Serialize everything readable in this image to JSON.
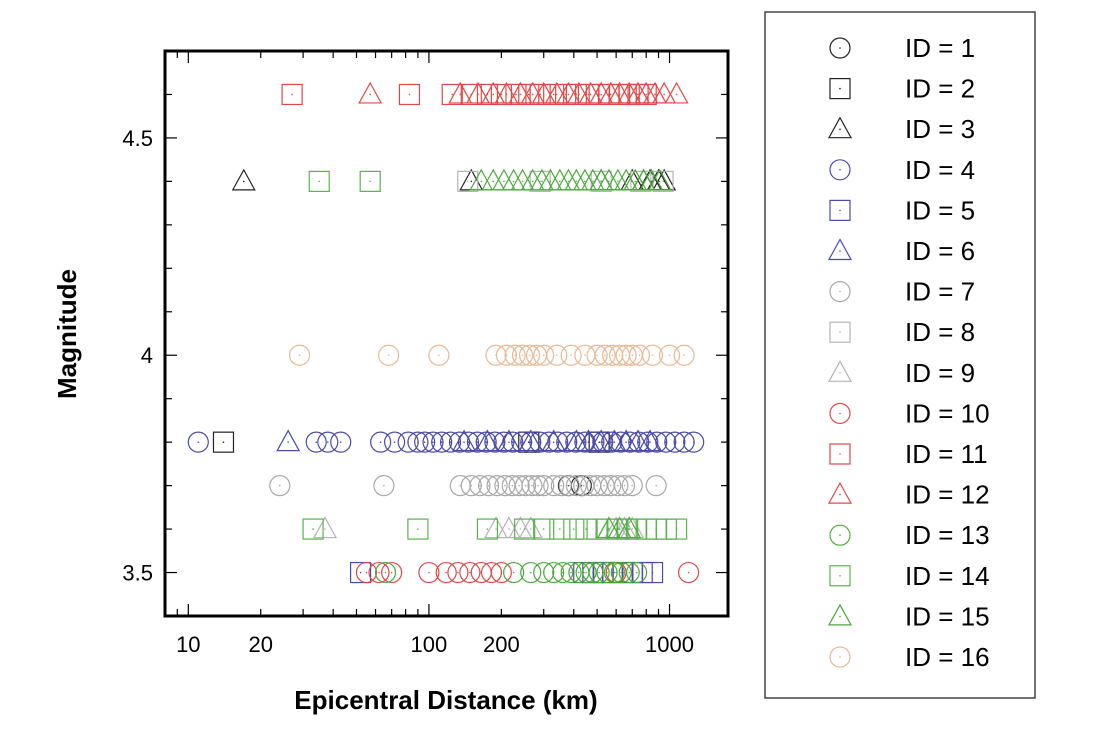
{
  "chart_data": {
    "type": "scatter",
    "xscale": "log",
    "xlabel": "Epicentral Distance (km)",
    "ylabel": "Magnitude",
    "xlim": [
      8,
      1750
    ],
    "ylim": [
      3.4,
      4.7
    ],
    "xticks": [
      10,
      20,
      100,
      200,
      1000
    ],
    "xtick_labels": [
      "10",
      "20",
      "100",
      "200",
      "1000"
    ],
    "yticks": [
      3.5,
      4,
      4.5
    ],
    "ytick_labels": [
      "3.5",
      "4",
      "4.5"
    ],
    "grid": false,
    "legend_position": "right",
    "series": [
      {
        "name": "ID = 1",
        "marker": "circle",
        "color": "#222222",
        "x": [
          380,
          430
        ],
        "y": [
          3.7,
          3.7
        ]
      },
      {
        "name": "ID = 2",
        "marker": "square",
        "color": "#222222",
        "x": [
          14,
          260,
          510
        ],
        "y": [
          3.8,
          3.8,
          3.8
        ]
      },
      {
        "name": "ID = 3",
        "marker": "triangle",
        "color": "#222222",
        "x": [
          17,
          150,
          520,
          700,
          780,
          830,
          900,
          950
        ],
        "y": [
          4.4,
          4.4,
          4.4,
          4.4,
          4.4,
          4.4,
          4.4,
          4.4
        ]
      },
      {
        "name": "ID = 4",
        "marker": "circle",
        "color": "#4a4aaa",
        "x": [
          11,
          34,
          38,
          43,
          63,
          72,
          82,
          90,
          96,
          104,
          113,
          123,
          134,
          146,
          159,
          173,
          188,
          205,
          223,
          243,
          265,
          289,
          315,
          343,
          374,
          408,
          445,
          485,
          528,
          575,
          627,
          684,
          745,
          812,
          885,
          965,
          1052,
          1150,
          1260
        ],
        "y": [
          3.8,
          3.8,
          3.8,
          3.8,
          3.8,
          3.8,
          3.8,
          3.8,
          3.8,
          3.8,
          3.8,
          3.8,
          3.8,
          3.8,
          3.8,
          3.8,
          3.8,
          3.8,
          3.8,
          3.8,
          3.8,
          3.8,
          3.8,
          3.8,
          3.8,
          3.8,
          3.8,
          3.8,
          3.8,
          3.8,
          3.8,
          3.8,
          3.8,
          3.8,
          3.8,
          3.8,
          3.8,
          3.8,
          3.8
        ]
      },
      {
        "name": "ID = 5",
        "marker": "square",
        "color": "#4a4aaa",
        "x": [
          52,
          440,
          480,
          530,
          580,
          640,
          700,
          770,
          850
        ],
        "y": [
          3.5,
          3.5,
          3.5,
          3.5,
          3.5,
          3.5,
          3.5,
          3.5,
          3.5
        ]
      },
      {
        "name": "ID = 6",
        "marker": "triangle",
        "color": "#4a4aaa",
        "x": [
          26,
          140,
          175,
          215,
          265,
          330,
          410,
          460,
          520,
          590,
          660,
          740,
          830
        ],
        "y": [
          3.8,
          3.8,
          3.8,
          3.8,
          3.8,
          3.8,
          3.8,
          3.8,
          3.8,
          3.8,
          3.8,
          3.8,
          3.8
        ]
      },
      {
        "name": "ID = 7",
        "marker": "circle",
        "color": "#a8a8a8",
        "x": [
          24,
          65,
          135,
          150,
          163,
          177,
          192,
          207,
          222,
          237,
          252,
          268,
          284,
          300,
          330,
          355,
          383,
          410,
          440,
          470,
          500,
          535,
          570,
          610,
          650,
          700,
          880
        ],
        "y": [
          3.7,
          3.7,
          3.7,
          3.7,
          3.7,
          3.7,
          3.7,
          3.7,
          3.7,
          3.7,
          3.7,
          3.7,
          3.7,
          3.7,
          3.7,
          3.7,
          3.7,
          3.7,
          3.7,
          3.7,
          3.7,
          3.7,
          3.7,
          3.7,
          3.7,
          3.7,
          3.7
        ]
      },
      {
        "name": "ID = 8",
        "marker": "square",
        "color": "#b4b4b4",
        "x": [
          145,
          290,
          520,
          760,
          940
        ],
        "y": [
          4.4,
          4.4,
          4.4,
          4.4,
          4.4
        ]
      },
      {
        "name": "ID = 9",
        "marker": "triangle",
        "color": "#b4b4b4",
        "x": [
          37,
          190,
          215,
          240,
          265,
          600,
          650,
          700
        ],
        "y": [
          3.6,
          3.6,
          3.6,
          3.6,
          3.6,
          3.6,
          3.6,
          3.6
        ]
      },
      {
        "name": "ID = 10",
        "marker": "circle",
        "color": "#e04848",
        "x": [
          55,
          62,
          70,
          100,
          118,
          132,
          148,
          165,
          182,
          200,
          600,
          1200
        ],
        "y": [
          3.5,
          3.5,
          3.5,
          3.5,
          3.5,
          3.5,
          3.5,
          3.5,
          3.5,
          3.5,
          3.5,
          3.5
        ]
      },
      {
        "name": "ID = 11",
        "marker": "square",
        "color": "#e04848",
        "x": [
          27,
          83,
          125,
          150,
          175,
          200,
          230,
          260,
          290,
          330,
          370,
          410,
          460,
          510,
          560,
          620,
          680,
          740,
          800
        ],
        "y": [
          4.6,
          4.6,
          4.6,
          4.6,
          4.6,
          4.6,
          4.6,
          4.6,
          4.6,
          4.6,
          4.6,
          4.6,
          4.6,
          4.6,
          4.6,
          4.6,
          4.6,
          4.6,
          4.6
        ]
      },
      {
        "name": "ID = 12",
        "marker": "triangle",
        "color": "#e04848",
        "x": [
          57,
          135,
          160,
          185,
          210,
          240,
          270,
          300,
          340,
          380,
          420,
          470,
          520,
          570,
          620,
          680,
          740,
          800,
          870,
          950,
          1070
        ],
        "y": [
          4.6,
          4.6,
          4.6,
          4.6,
          4.6,
          4.6,
          4.6,
          4.6,
          4.6,
          4.6,
          4.6,
          4.6,
          4.6,
          4.6,
          4.6,
          4.6,
          4.6,
          4.6,
          4.6,
          4.6,
          4.6
        ]
      },
      {
        "name": "ID = 13",
        "marker": "circle",
        "color": "#4aaa3a",
        "x": [
          66,
          225,
          265,
          300,
          330,
          360,
          390,
          420,
          450,
          480,
          510,
          550,
          590,
          630,
          680,
          730
        ],
        "y": [
          3.5,
          3.5,
          3.5,
          3.5,
          3.5,
          3.5,
          3.5,
          3.5,
          3.5,
          3.5,
          3.5,
          3.5,
          3.5,
          3.5,
          3.5,
          3.5
        ]
      },
      {
        "name": "ID = 14",
        "marker": "square",
        "color": "#56b44a",
        "x": [
          35,
          57,
          33,
          90,
          175,
          250,
          300,
          350,
          400,
          450,
          500,
          550,
          610,
          670,
          730,
          800,
          880,
          970,
          1070
        ],
        "y": [
          4.4,
          4.4,
          3.6,
          3.6,
          3.6,
          3.6,
          3.6,
          3.6,
          3.6,
          3.6,
          3.6,
          3.6,
          3.6,
          3.6,
          3.6,
          3.6,
          3.6,
          3.6,
          3.6
        ]
      },
      {
        "name": "ID = 15",
        "marker": "triangle",
        "color": "#4aaa3a",
        "x": [
          165,
          185,
          205,
          225,
          245,
          270,
          295,
          320,
          350,
          380,
          410,
          445,
          480,
          520,
          560,
          610,
          660,
          720,
          780,
          840,
          910,
          560,
          620,
          680
        ],
        "y": [
          4.4,
          4.4,
          4.4,
          4.4,
          4.4,
          4.4,
          4.4,
          4.4,
          4.4,
          4.4,
          4.4,
          4.4,
          4.4,
          4.4,
          4.4,
          4.4,
          4.4,
          4.4,
          4.4,
          4.4,
          4.4,
          3.6,
          3.6,
          3.6
        ]
      },
      {
        "name": "ID = 16",
        "marker": "circle",
        "color": "#e8b894",
        "x": [
          29,
          68,
          110,
          190,
          210,
          228,
          245,
          262,
          280,
          300,
          340,
          390,
          445,
          500,
          540,
          580,
          620,
          660,
          700,
          750,
          850,
          1000,
          1150
        ],
        "y": [
          4.0,
          4.0,
          4.0,
          4.0,
          4.0,
          4.0,
          4.0,
          4.0,
          4.0,
          4.0,
          4.0,
          4.0,
          4.0,
          4.0,
          4.0,
          4.0,
          4.0,
          4.0,
          4.0,
          4.0,
          4.0,
          4.0,
          4.0
        ]
      }
    ]
  }
}
